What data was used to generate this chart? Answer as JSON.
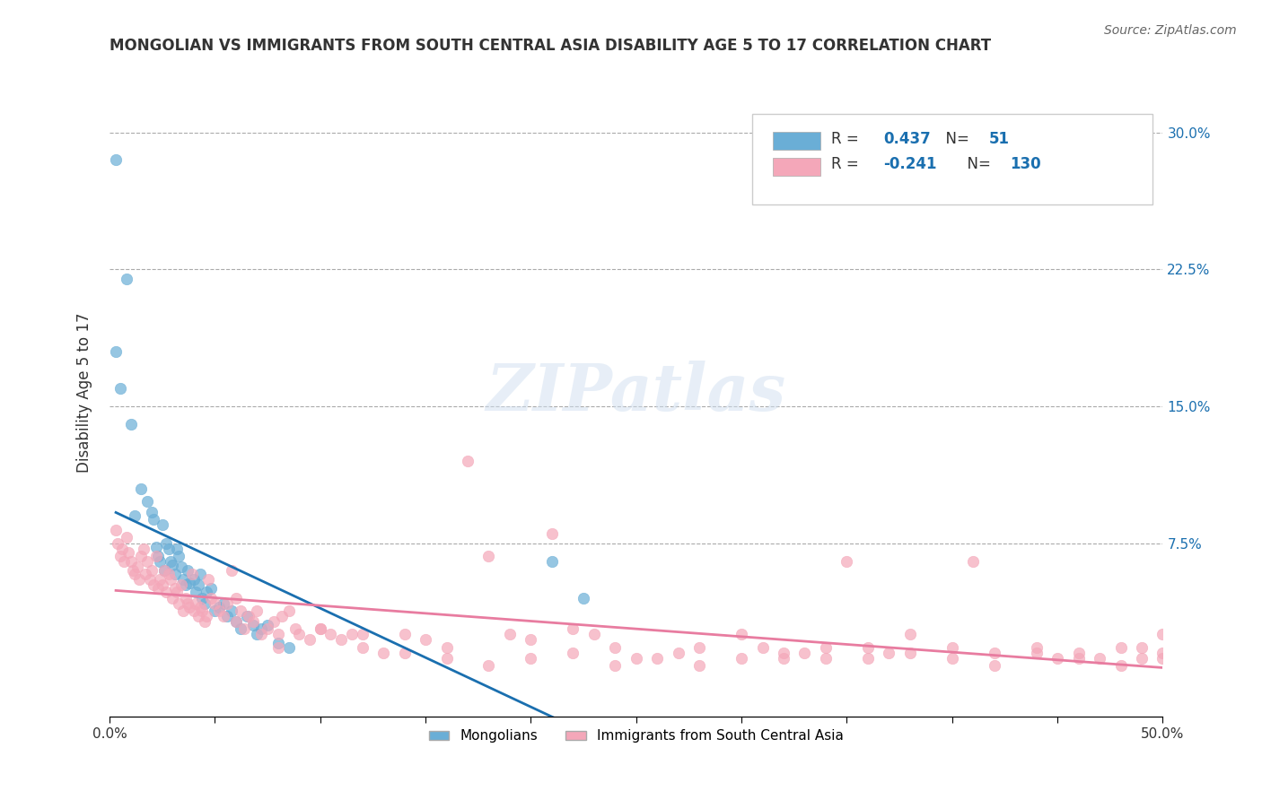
{
  "title": "MONGOLIAN VS IMMIGRANTS FROM SOUTH CENTRAL ASIA DISABILITY AGE 5 TO 17 CORRELATION CHART",
  "source": "Source: ZipAtlas.com",
  "xlabel": "",
  "ylabel": "Disability Age 5 to 17",
  "xlim": [
    0.0,
    0.5
  ],
  "ylim": [
    -0.01,
    0.325
  ],
  "xticks": [
    0.0,
    0.05,
    0.1,
    0.15,
    0.2,
    0.25,
    0.3,
    0.35,
    0.4,
    0.45,
    0.5
  ],
  "xticklabels": [
    "0.0%",
    "",
    "",
    "",
    "",
    "",
    "",
    "",
    "",
    "",
    "50.0%"
  ],
  "ytick_positions": [
    0.0,
    0.075,
    0.15,
    0.225,
    0.3
  ],
  "ytick_labels": [
    "",
    "7.5%",
    "15.0%",
    "22.5%",
    "30.0%"
  ],
  "blue_R": 0.437,
  "blue_N": 51,
  "pink_R": -0.241,
  "pink_N": 130,
  "blue_color": "#6aaed6",
  "pink_color": "#f4a7b9",
  "blue_line_color": "#1a6faf",
  "pink_line_color": "#e87ca0",
  "legend_blue_label": "Mongolians",
  "legend_pink_label": "Immigrants from South Central Asia",
  "watermark": "ZIPatlas",
  "blue_scatter_x": [
    0.003,
    0.003,
    0.005,
    0.008,
    0.01,
    0.012,
    0.015,
    0.018,
    0.02,
    0.021,
    0.022,
    0.023,
    0.024,
    0.025,
    0.026,
    0.027,
    0.028,
    0.029,
    0.03,
    0.031,
    0.032,
    0.033,
    0.034,
    0.035,
    0.036,
    0.037,
    0.038,
    0.04,
    0.041,
    0.042,
    0.043,
    0.044,
    0.045,
    0.046,
    0.048,
    0.05,
    0.052,
    0.054,
    0.056,
    0.058,
    0.06,
    0.062,
    0.065,
    0.068,
    0.07,
    0.072,
    0.075,
    0.08,
    0.085,
    0.21,
    0.225
  ],
  "blue_scatter_y": [
    0.285,
    0.18,
    0.16,
    0.22,
    0.14,
    0.09,
    0.105,
    0.098,
    0.092,
    0.088,
    0.073,
    0.068,
    0.065,
    0.085,
    0.06,
    0.075,
    0.072,
    0.065,
    0.063,
    0.058,
    0.072,
    0.068,
    0.062,
    0.055,
    0.052,
    0.06,
    0.053,
    0.055,
    0.048,
    0.052,
    0.058,
    0.045,
    0.042,
    0.048,
    0.05,
    0.038,
    0.04,
    0.042,
    0.035,
    0.038,
    0.032,
    0.028,
    0.035,
    0.03,
    0.025,
    0.028,
    0.03,
    0.02,
    0.018,
    0.065,
    0.045
  ],
  "pink_scatter_x": [
    0.003,
    0.004,
    0.005,
    0.006,
    0.007,
    0.008,
    0.009,
    0.01,
    0.011,
    0.012,
    0.013,
    0.014,
    0.015,
    0.016,
    0.017,
    0.018,
    0.019,
    0.02,
    0.021,
    0.022,
    0.023,
    0.024,
    0.025,
    0.026,
    0.027,
    0.028,
    0.029,
    0.03,
    0.031,
    0.032,
    0.033,
    0.034,
    0.035,
    0.036,
    0.037,
    0.038,
    0.039,
    0.04,
    0.041,
    0.042,
    0.043,
    0.044,
    0.045,
    0.046,
    0.047,
    0.048,
    0.05,
    0.052,
    0.054,
    0.056,
    0.058,
    0.06,
    0.062,
    0.064,
    0.066,
    0.068,
    0.07,
    0.072,
    0.075,
    0.078,
    0.08,
    0.082,
    0.085,
    0.088,
    0.09,
    0.095,
    0.1,
    0.105,
    0.11,
    0.115,
    0.12,
    0.13,
    0.14,
    0.15,
    0.16,
    0.17,
    0.18,
    0.19,
    0.2,
    0.21,
    0.22,
    0.23,
    0.24,
    0.25,
    0.27,
    0.28,
    0.3,
    0.31,
    0.32,
    0.33,
    0.34,
    0.35,
    0.36,
    0.37,
    0.38,
    0.4,
    0.41,
    0.42,
    0.44,
    0.45,
    0.46,
    0.47,
    0.48,
    0.49,
    0.49,
    0.5,
    0.5,
    0.5,
    0.48,
    0.46,
    0.44,
    0.42,
    0.4,
    0.38,
    0.36,
    0.34,
    0.32,
    0.3,
    0.28,
    0.26,
    0.24,
    0.22,
    0.2,
    0.18,
    0.16,
    0.14,
    0.12,
    0.1,
    0.08,
    0.06
  ],
  "pink_scatter_y": [
    0.082,
    0.075,
    0.068,
    0.072,
    0.065,
    0.078,
    0.07,
    0.065,
    0.06,
    0.058,
    0.062,
    0.055,
    0.068,
    0.072,
    0.058,
    0.065,
    0.055,
    0.06,
    0.052,
    0.068,
    0.05,
    0.055,
    0.052,
    0.06,
    0.048,
    0.058,
    0.055,
    0.045,
    0.05,
    0.048,
    0.042,
    0.052,
    0.038,
    0.045,
    0.042,
    0.04,
    0.058,
    0.038,
    0.042,
    0.035,
    0.04,
    0.038,
    0.032,
    0.035,
    0.055,
    0.045,
    0.042,
    0.038,
    0.035,
    0.042,
    0.06,
    0.032,
    0.038,
    0.028,
    0.035,
    0.032,
    0.038,
    0.025,
    0.028,
    0.032,
    0.025,
    0.035,
    0.038,
    0.028,
    0.025,
    0.022,
    0.028,
    0.025,
    0.022,
    0.025,
    0.018,
    0.015,
    0.025,
    0.022,
    0.018,
    0.12,
    0.068,
    0.025,
    0.022,
    0.08,
    0.028,
    0.025,
    0.018,
    0.012,
    0.015,
    0.018,
    0.025,
    0.018,
    0.012,
    0.015,
    0.018,
    0.065,
    0.012,
    0.015,
    0.025,
    0.018,
    0.065,
    0.015,
    0.018,
    0.012,
    0.015,
    0.012,
    0.008,
    0.012,
    0.018,
    0.015,
    0.025,
    0.012,
    0.018,
    0.012,
    0.015,
    0.008,
    0.012,
    0.015,
    0.018,
    0.012,
    0.015,
    0.012,
    0.008,
    0.012,
    0.008,
    0.015,
    0.012,
    0.008,
    0.012,
    0.015,
    0.025,
    0.028,
    0.018,
    0.045
  ]
}
